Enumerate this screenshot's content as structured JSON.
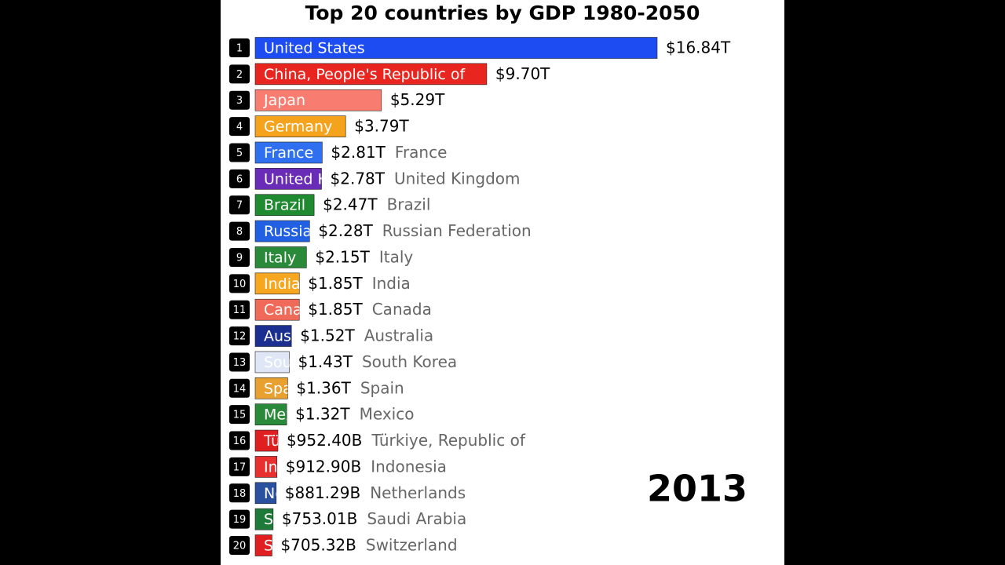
{
  "chart_data": {
    "type": "bar",
    "orientation": "horizontal",
    "title": "Top 20 countries by GDP 1980-2050",
    "annotation": "2013",
    "ranks": [
      1,
      2,
      3,
      4,
      5,
      6,
      7,
      8,
      9,
      10,
      11,
      12,
      13,
      14,
      15,
      16,
      17,
      18,
      19,
      20
    ],
    "categories": [
      "United States",
      "China, People's Republic of",
      "Japan",
      "Germany",
      "France",
      "United Kingdom",
      "Brazil",
      "Russian Federation",
      "Italy",
      "India",
      "Canada",
      "Australia",
      "South Korea",
      "Spain",
      "Mexico",
      "Türkiye, Republic of",
      "Indonesia",
      "Netherlands",
      "Saudi Arabia",
      "Switzerland"
    ],
    "values": [
      16840,
      9700,
      5290,
      3790,
      2810,
      2780,
      2470,
      2280,
      2150,
      1850,
      1850,
      1520,
      1430,
      1360,
      1320,
      952.4,
      912.9,
      881.29,
      753.01,
      705.32
    ],
    "value_labels": [
      "$16.84T",
      "$9.70T",
      "$5.29T",
      "$3.79T",
      "$2.81T",
      "$2.78T",
      "$2.47T",
      "$2.28T",
      "$2.15T",
      "$1.85T",
      "$1.85T",
      "$1.52T",
      "$1.43T",
      "$1.36T",
      "$1.32T",
      "$952.40B",
      "$912.90B",
      "$881.29B",
      "$753.01B",
      "$705.32B"
    ],
    "colors": [
      "#1d4df2",
      "#e8261f",
      "#f87d70",
      "#f5a21c",
      "#2e70f0",
      "#6a2cb6",
      "#1f8a2f",
      "#2160e2",
      "#2a8a3a",
      "#f7a620",
      "#f06a5a",
      "#1a2f8f",
      "#dfe6f5",
      "#e8a030",
      "#2a8a3a",
      "#e02020",
      "#e83030",
      "#2a50a0",
      "#1f7a3a",
      "#e02020"
    ]
  }
}
